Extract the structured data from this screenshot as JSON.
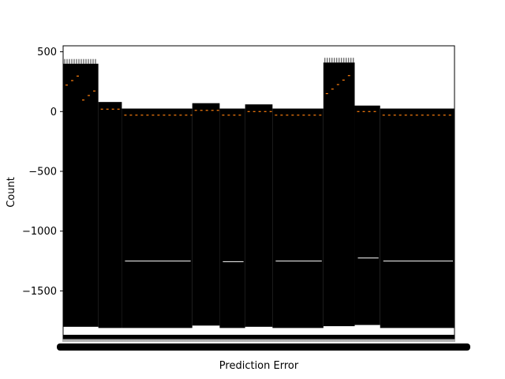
{
  "chart_data": {
    "type": "box",
    "title": "",
    "xlabel": "Prediction Error",
    "ylabel": "Count",
    "ylim": [
      -1900,
      550
    ],
    "yticks": [
      500,
      0,
      -500,
      -1000,
      -1500
    ],
    "ytick_labels": [
      "500",
      "0",
      "−500",
      "−1000",
      "−1500"
    ],
    "grid": false,
    "box_color": "#000000",
    "median_color": "#ff7f0e",
    "segments": [
      {
        "x_from": 0,
        "x_to": 0.09,
        "box_top": 400,
        "median": 160,
        "low_whisker": -1800,
        "extra_line": null
      },
      {
        "x_from": 0.09,
        "x_to": 0.15,
        "box_top": 80,
        "median": 20,
        "low_whisker": -1810,
        "extra_line": null
      },
      {
        "x_from": 0.15,
        "x_to": 0.33,
        "box_top": 25,
        "median": -30,
        "low_whisker": -1810,
        "extra_line": -1250
      },
      {
        "x_from": 0.33,
        "x_to": 0.4,
        "box_top": 70,
        "median": 10,
        "low_whisker": -1790,
        "extra_line": null
      },
      {
        "x_from": 0.4,
        "x_to": 0.465,
        "box_top": 25,
        "median": -30,
        "low_whisker": -1810,
        "extra_line": -1255
      },
      {
        "x_from": 0.465,
        "x_to": 0.535,
        "box_top": 60,
        "median": 0,
        "low_whisker": -1800,
        "extra_line": null
      },
      {
        "x_from": 0.535,
        "x_to": 0.665,
        "box_top": 25,
        "median": -30,
        "low_whisker": -1810,
        "extra_line": -1250
      },
      {
        "x_from": 0.665,
        "x_to": 0.745,
        "box_top": 410,
        "median": 160,
        "low_whisker": -1795,
        "extra_line": null
      },
      {
        "x_from": 0.745,
        "x_to": 0.81,
        "box_top": 50,
        "median": 0,
        "low_whisker": -1785,
        "extra_line": -1225
      },
      {
        "x_from": 0.81,
        "x_to": 1.0,
        "box_top": 25,
        "median": -30,
        "low_whisker": -1810,
        "extra_line": -1250
      }
    ]
  }
}
